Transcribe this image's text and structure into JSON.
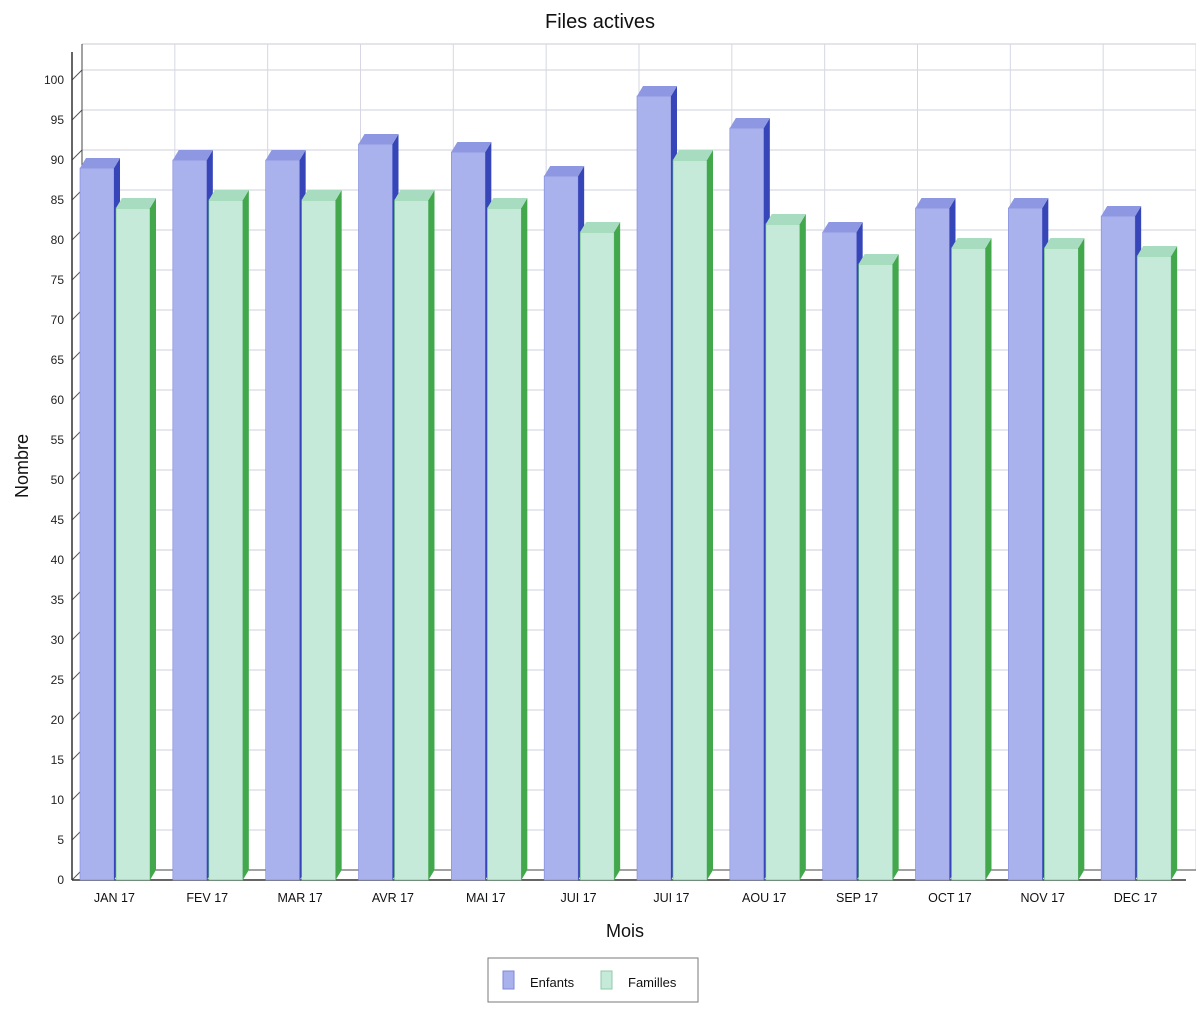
{
  "chart_data": {
    "type": "bar",
    "title": "Files actives",
    "xlabel": "Mois",
    "ylabel": "Nombre",
    "ylim": [
      0,
      100
    ],
    "yticks": [
      0,
      5,
      10,
      15,
      20,
      25,
      30,
      35,
      40,
      45,
      50,
      55,
      60,
      65,
      70,
      75,
      80,
      85,
      90,
      95,
      100
    ],
    "grid": true,
    "three_d": true,
    "legend_position": "bottom-center",
    "categories": [
      "JAN 17",
      "FEV 17",
      "MAR 17",
      "AVR 17",
      "MAI 17",
      "JUI 17",
      "JUI 17",
      "AOU 17",
      "SEP 17",
      "OCT 17",
      "NOV 17",
      "DEC 17"
    ],
    "series": [
      {
        "name": "Enfants",
        "color": "#aab2ee",
        "values": [
          89,
          90,
          90,
          92,
          91,
          88,
          98,
          94,
          81,
          84,
          84,
          83
        ]
      },
      {
        "name": "Familles",
        "color": "#c6ead9",
        "values": [
          84,
          85,
          85,
          85,
          84,
          81,
          90,
          82,
          77,
          79,
          79,
          78
        ]
      }
    ]
  }
}
